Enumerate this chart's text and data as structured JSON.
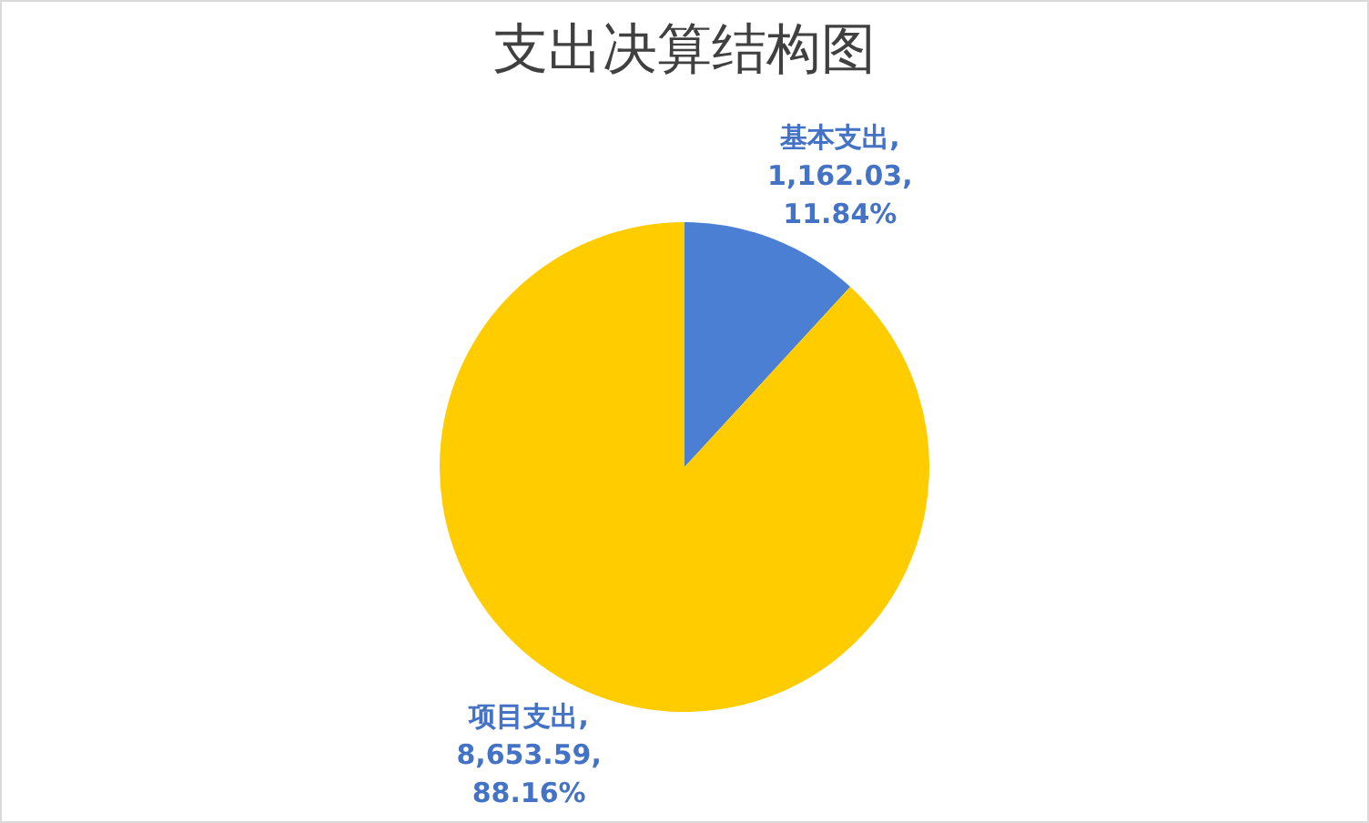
{
  "chart_data": {
    "type": "pie",
    "title": "支出决算结构图",
    "categories": [
      "基本支出",
      "项目支出"
    ],
    "values": [
      1162.03,
      8653.59
    ],
    "colors": [
      "#4a7fd4",
      "#ffcc00"
    ],
    "value_labels": [
      ",\n1,162.03,\n11.84%",
      ",\n8,653.59,\n88.16%"
    ],
    "legend": false
  }
}
